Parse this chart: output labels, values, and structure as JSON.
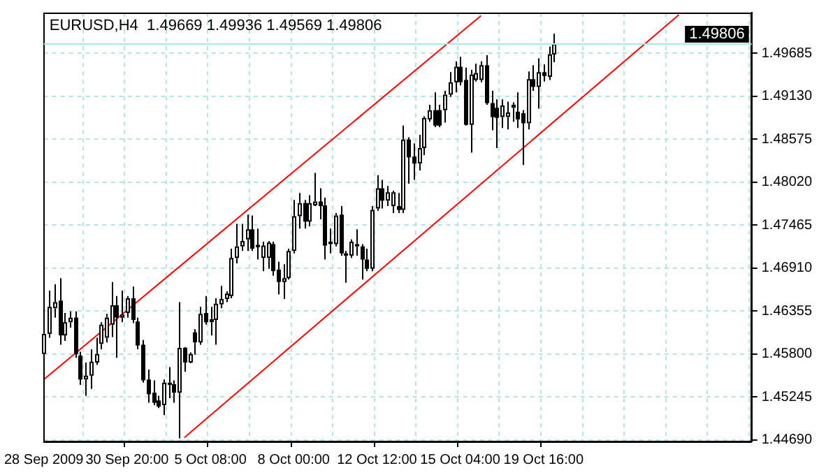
{
  "chart_data": {
    "type": "candlestick",
    "title": "EURUSD,H4  1.49669 1.49936 1.49569 1.49806",
    "categories": [
      "28 Sep 2009",
      null,
      null,
      null,
      null,
      null,
      null,
      null,
      null,
      null,
      null,
      null,
      null,
      null,
      null,
      null,
      "30 Sep 20:00",
      null,
      null,
      null,
      null,
      null,
      null,
      null,
      null,
      null,
      null,
      null,
      null,
      null,
      null,
      null,
      "5 Oct 08:00",
      null,
      null,
      null,
      null,
      null,
      null,
      null,
      null,
      null,
      null,
      null,
      null,
      null,
      null,
      null,
      "8 Oct 00:00",
      null,
      null,
      null,
      null,
      null,
      null,
      null,
      null,
      null,
      null,
      null,
      null,
      null,
      null,
      null,
      "12 Oct 12:00",
      null,
      null,
      null,
      null,
      null,
      null,
      null,
      null,
      null,
      null,
      null,
      null,
      null,
      null,
      null,
      "15 Oct 04:00",
      null,
      null,
      null,
      null,
      null,
      null,
      null,
      null,
      null,
      null,
      null,
      null,
      null,
      null,
      null,
      "19 Oct 16:00",
      null,
      null,
      null,
      null,
      null,
      null,
      null,
      null,
      null,
      null,
      null,
      null,
      null,
      null,
      null,
      null,
      null,
      null,
      null,
      null,
      null,
      null,
      null,
      null,
      null,
      null,
      null,
      null,
      null,
      null,
      null,
      null,
      null,
      null,
      null,
      null,
      null,
      null,
      null,
      null
    ],
    "ohlc": [
      [
        1.458,
        1.4633,
        1.4563,
        1.4606
      ],
      [
        1.4606,
        1.4662,
        1.4601,
        1.4641
      ],
      [
        1.4639,
        1.467,
        1.4627,
        1.4647
      ],
      [
        1.4649,
        1.4678,
        1.4592,
        1.4604
      ],
      [
        1.4604,
        1.4633,
        1.4597,
        1.4621
      ],
      [
        1.4621,
        1.4635,
        1.4614,
        1.4627
      ],
      [
        1.4627,
        1.4635,
        1.4575,
        1.458
      ],
      [
        1.4578,
        1.4583,
        1.454,
        1.4547
      ],
      [
        1.4547,
        1.4569,
        1.4526,
        1.4552
      ],
      [
        1.4552,
        1.4586,
        1.4535,
        1.457
      ],
      [
        1.4569,
        1.4601,
        1.4566,
        1.458
      ],
      [
        1.4593,
        1.4621,
        1.4586,
        1.4618
      ],
      [
        1.4601,
        1.4632,
        1.4595,
        1.4627
      ],
      [
        1.4618,
        1.4673,
        1.4602,
        1.4643
      ],
      [
        1.4643,
        1.4655,
        1.4575,
        1.4627
      ],
      [
        1.4627,
        1.4662,
        1.4621,
        1.4631
      ],
      [
        1.4633,
        1.4655,
        1.4627,
        1.4652
      ],
      [
        1.4652,
        1.4667,
        1.462,
        1.4624
      ],
      [
        1.4622,
        1.4627,
        1.4586,
        1.4591
      ],
      [
        1.4592,
        1.4598,
        1.4543,
        1.4546
      ],
      [
        1.4547,
        1.456,
        1.4517,
        1.4528
      ],
      [
        1.453,
        1.4546,
        1.4514,
        1.4517
      ],
      [
        1.452,
        1.4526,
        1.451,
        1.4512
      ],
      [
        1.4514,
        1.4547,
        1.4501,
        1.4543
      ],
      [
        1.454,
        1.4563,
        1.4523,
        1.4543
      ],
      [
        1.4541,
        1.4546,
        1.4517,
        1.453
      ],
      [
        1.453,
        1.4647,
        1.4471,
        1.4588
      ],
      [
        1.4588,
        1.4589,
        1.4557,
        1.4569
      ],
      [
        1.4569,
        1.4582,
        1.4568,
        1.458
      ],
      [
        1.4608,
        1.4612,
        1.4579,
        1.4595
      ],
      [
        1.4595,
        1.4641,
        1.4592,
        1.4632
      ],
      [
        1.4633,
        1.4655,
        1.4618,
        1.4621
      ],
      [
        1.4621,
        1.4641,
        1.4604,
        1.4625
      ],
      [
        1.4624,
        1.4652,
        1.4592,
        1.4645
      ],
      [
        1.4644,
        1.4668,
        1.4639,
        1.4651
      ],
      [
        1.4651,
        1.4661,
        1.4647,
        1.4658
      ],
      [
        1.4655,
        1.4716,
        1.4652,
        1.4704
      ],
      [
        1.4704,
        1.4748,
        1.4697,
        1.4719
      ],
      [
        1.4719,
        1.4748,
        1.4713,
        1.4726
      ],
      [
        1.4728,
        1.476,
        1.4713,
        1.4741
      ],
      [
        1.4741,
        1.4759,
        1.4713,
        1.4716
      ],
      [
        1.4721,
        1.4742,
        1.4702,
        1.4718
      ],
      [
        1.4704,
        1.4725,
        1.4687,
        1.472
      ],
      [
        1.4704,
        1.4726,
        1.469,
        1.4724
      ],
      [
        1.4722,
        1.4725,
        1.4681,
        1.4687
      ],
      [
        1.4689,
        1.4699,
        1.4657,
        1.4673
      ],
      [
        1.4673,
        1.4696,
        1.4651,
        1.4678
      ],
      [
        1.4678,
        1.4716,
        1.4676,
        1.4713
      ],
      [
        1.4713,
        1.4779,
        1.471,
        1.4758
      ],
      [
        1.4758,
        1.4788,
        1.4742,
        1.4775
      ],
      [
        1.4775,
        1.4779,
        1.4742,
        1.4751
      ],
      [
        1.4751,
        1.4785,
        1.4745,
        1.4775
      ],
      [
        1.4772,
        1.4814,
        1.4771,
        1.4777
      ],
      [
        1.4777,
        1.4794,
        1.4754,
        1.4771
      ],
      [
        1.4772,
        1.4782,
        1.4702,
        1.472
      ],
      [
        1.4725,
        1.4742,
        1.471,
        1.4722
      ],
      [
        1.4722,
        1.4762,
        1.4719,
        1.4759
      ],
      [
        1.476,
        1.4771,
        1.4707,
        1.471
      ],
      [
        1.471,
        1.4713,
        1.4672,
        1.4707
      ],
      [
        1.4707,
        1.4728,
        1.4704,
        1.4725
      ],
      [
        1.4719,
        1.4741,
        1.4707,
        1.4722
      ],
      [
        1.4719,
        1.4722,
        1.4676,
        1.4702
      ],
      [
        1.4702,
        1.4716,
        1.4687,
        1.469
      ],
      [
        1.469,
        1.4771,
        1.4687,
        1.4766
      ],
      [
        1.4768,
        1.4811,
        1.4765,
        1.4794
      ],
      [
        1.4794,
        1.4805,
        1.4768,
        1.4778
      ],
      [
        1.4778,
        1.4797,
        1.4771,
        1.4789
      ],
      [
        1.4771,
        1.4791,
        1.4762,
        1.4789
      ],
      [
        1.4771,
        1.4788,
        1.4762,
        1.4766
      ],
      [
        1.4766,
        1.4875,
        1.4762,
        1.4857
      ],
      [
        1.4857,
        1.486,
        1.48,
        1.4834
      ],
      [
        1.4835,
        1.4852,
        1.4805,
        1.4826
      ],
      [
        1.4826,
        1.4863,
        1.4817,
        1.4846
      ],
      [
        1.4846,
        1.4887,
        1.4837,
        1.4885
      ],
      [
        1.4883,
        1.4902,
        1.488,
        1.4895
      ],
      [
        1.4895,
        1.4918,
        1.4873,
        1.4875
      ],
      [
        1.4895,
        1.4902,
        1.4873,
        1.4875
      ],
      [
        1.4895,
        1.492,
        1.4879,
        1.4915
      ],
      [
        1.4915,
        1.4944,
        1.4912,
        1.4931
      ],
      [
        1.4931,
        1.4958,
        1.4918,
        1.4951
      ],
      [
        1.4951,
        1.4964,
        1.4927,
        1.4931
      ],
      [
        1.4934,
        1.495,
        1.4875,
        1.4876
      ],
      [
        1.4876,
        1.4947,
        1.484,
        1.4941
      ],
      [
        1.4934,
        1.4955,
        1.4932,
        1.4943
      ],
      [
        1.4934,
        1.4958,
        1.4931,
        1.4953
      ],
      [
        1.4953,
        1.4966,
        1.4902,
        1.4904
      ],
      [
        1.4904,
        1.492,
        1.4869,
        1.4886
      ],
      [
        1.4898,
        1.4909,
        1.4846,
        1.4885
      ],
      [
        1.4886,
        1.4909,
        1.4872,
        1.4901
      ],
      [
        1.4886,
        1.4906,
        1.487,
        1.4892
      ],
      [
        1.4898,
        1.4905,
        1.488,
        1.4902
      ],
      [
        1.4893,
        1.4918,
        1.4872,
        1.4883
      ],
      [
        1.4891,
        1.4895,
        1.4824,
        1.4878
      ],
      [
        1.4878,
        1.4945,
        1.487,
        1.4935
      ],
      [
        1.4935,
        1.4953,
        1.492,
        1.4925
      ],
      [
        1.4925,
        1.4962,
        1.4897,
        1.4944
      ],
      [
        1.4944,
        1.4954,
        1.4932,
        1.4939
      ],
      [
        1.4938,
        1.4977,
        1.4934,
        1.4967
      ],
      [
        1.49669,
        1.49936,
        1.49569,
        1.49806
      ],
      null,
      null,
      null,
      null,
      null,
      null,
      null,
      null,
      null,
      null,
      null,
      null,
      null,
      null,
      null,
      null,
      null,
      null,
      null,
      null,
      null,
      null,
      null,
      null,
      null,
      null,
      null,
      null,
      null,
      null,
      null,
      null,
      null,
      null,
      null,
      null,
      null,
      null
    ],
    "series": [
      {
        "type": "line",
        "color": "#ff0000",
        "values": [
          1.4547,
          null,
          null,
          null,
          null,
          null,
          null,
          null,
          null,
          null,
          null,
          null,
          null,
          null,
          null,
          null,
          null,
          null,
          null,
          null,
          null,
          null,
          null,
          null,
          null,
          null,
          null,
          null,
          null,
          null,
          null,
          null,
          null,
          null,
          null,
          null,
          null,
          null,
          null,
          null,
          null,
          null,
          null,
          null,
          null,
          null,
          null,
          null,
          null,
          null,
          null,
          null,
          null,
          null,
          null,
          null,
          null,
          null,
          null,
          null,
          null,
          null,
          null,
          null,
          null,
          null,
          null,
          null,
          null,
          null,
          null,
          null,
          null,
          null,
          null,
          null,
          null,
          null,
          null,
          null,
          null,
          null,
          null,
          null,
          1.5017,
          null,
          null,
          null,
          null,
          null,
          null,
          null,
          null,
          null,
          null,
          null,
          null,
          null,
          null,
          null,
          null,
          null,
          null,
          null,
          null,
          null,
          null,
          null,
          null,
          null,
          null,
          null,
          null,
          null,
          null,
          null,
          null,
          null,
          null,
          null,
          null,
          null,
          null,
          null,
          null,
          null,
          null,
          null,
          null,
          null,
          null,
          null,
          null,
          null,
          null,
          null,
          null
        ]
      },
      {
        "type": "line",
        "color": "#ff0000",
        "values": [
          null,
          null,
          null,
          null,
          null,
          null,
          null,
          null,
          null,
          null,
          null,
          null,
          null,
          null,
          null,
          null,
          null,
          null,
          null,
          null,
          null,
          null,
          null,
          null,
          null,
          null,
          null,
          1.4472,
          null,
          null,
          null,
          null,
          null,
          null,
          null,
          null,
          null,
          null,
          null,
          null,
          null,
          null,
          null,
          null,
          null,
          null,
          null,
          null,
          null,
          null,
          null,
          null,
          null,
          null,
          null,
          null,
          null,
          null,
          null,
          null,
          null,
          null,
          null,
          null,
          null,
          null,
          null,
          null,
          null,
          null,
          null,
          null,
          null,
          null,
          null,
          null,
          null,
          null,
          null,
          null,
          null,
          null,
          null,
          null,
          null,
          null,
          null,
          null,
          null,
          null,
          null,
          null,
          null,
          null,
          null,
          null,
          null,
          null,
          null,
          null,
          null,
          null,
          null,
          null,
          null,
          null,
          null,
          null,
          null,
          null,
          null,
          null,
          null,
          null,
          null,
          null,
          null,
          null,
          null,
          null,
          null,
          null,
          1.5018,
          null,
          null,
          null,
          null,
          null,
          null,
          null,
          null,
          null,
          null,
          null,
          null,
          null,
          null
        ]
      }
    ],
    "ref_lines": [
      {
        "axis": "y",
        "value": 1.49806,
        "label": "1.49806",
        "color": "#a8e8e8"
      }
    ],
    "ylim": [
      1.4467,
      1.5021
    ],
    "yticks": [
      {
        "value": 1.4469,
        "label": "1.44690"
      },
      1.45245,
      {
        "value": 1.458,
        "label": "1.45800"
      },
      1.46355,
      {
        "value": 1.4691,
        "label": "1.46910"
      },
      1.47465,
      {
        "value": 1.4802,
        "label": "1.48020"
      },
      1.48575,
      {
        "value": 1.4913,
        "label": "1.49130"
      },
      1.49685
    ],
    "grid": true
  }
}
